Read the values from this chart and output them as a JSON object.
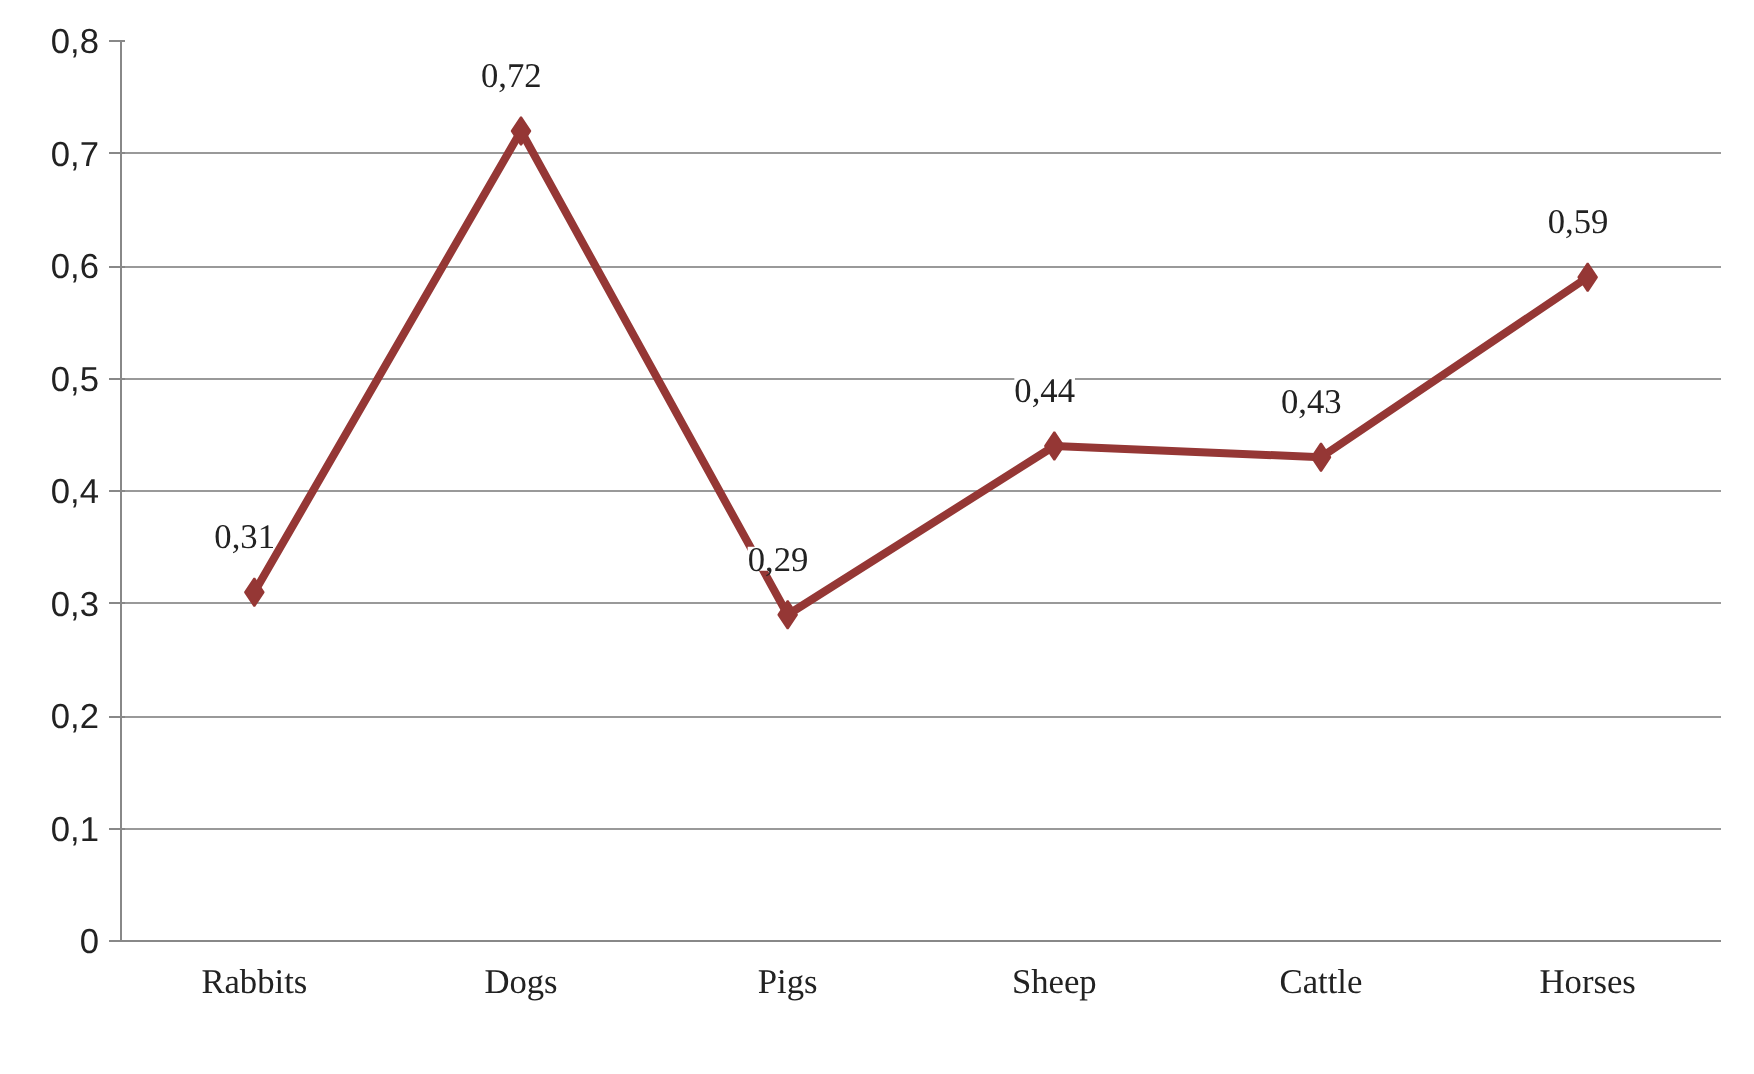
{
  "chart_data": {
    "type": "line",
    "categories": [
      "Rabbits",
      "Dogs",
      "Pigs",
      "Sheep",
      "Cattle",
      "Horses"
    ],
    "values": [
      0.31,
      0.72,
      0.29,
      0.44,
      0.43,
      0.59
    ],
    "value_labels": [
      "0,31",
      "0,72",
      "0,29",
      "0,44",
      "0,43",
      "0,59"
    ],
    "color": "#953735",
    "marker": "diamond",
    "ylim": [
      0,
      0.8
    ],
    "yticks": [
      {
        "value": 0,
        "label": "0"
      },
      {
        "value": 0.1,
        "label": "0,1"
      },
      {
        "value": 0.2,
        "label": "0,2"
      },
      {
        "value": 0.3,
        "label": "0,3"
      },
      {
        "value": 0.4,
        "label": "0,4"
      },
      {
        "value": 0.5,
        "label": "0,5"
      },
      {
        "value": 0.6,
        "label": "0,6"
      },
      {
        "value": 0.7,
        "label": "0,7"
      },
      {
        "value": 0.8,
        "label": "0,8"
      }
    ],
    "grid": "y"
  }
}
